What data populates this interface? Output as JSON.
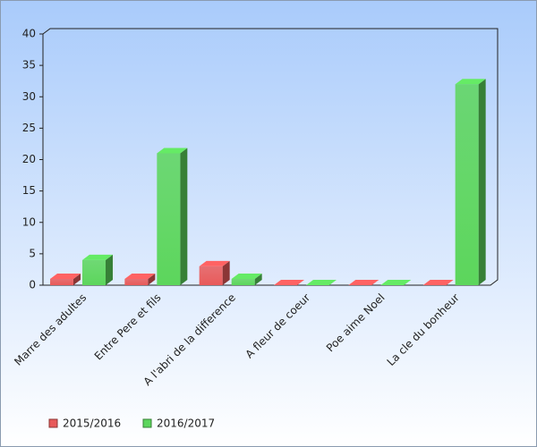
{
  "chart_data": {
    "type": "bar3d",
    "categories": [
      "Marre des adultes",
      "Entre Pere et fils",
      "A l'abri de la difference",
      "A fleur de coeur",
      "Poe aime Noel",
      "La cle du bonheur"
    ],
    "series": [
      {
        "name": "2015/2016",
        "color": "#e85a5a",
        "values": [
          1,
          1,
          3,
          0,
          0,
          0
        ]
      },
      {
        "name": "2016/2017",
        "color": "#5cd65c",
        "values": [
          4,
          21,
          1,
          0,
          0,
          32
        ]
      }
    ],
    "ylim": [
      0,
      40
    ],
    "yticks": [
      0,
      5,
      10,
      15,
      20,
      25,
      30,
      35,
      40
    ]
  }
}
